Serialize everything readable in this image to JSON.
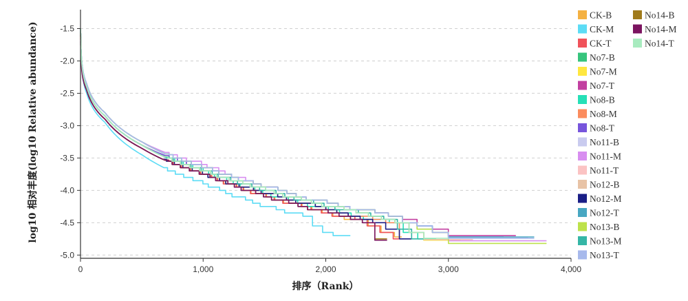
{
  "chart_data": {
    "type": "line",
    "title": "",
    "xlabel": "排序（Rank）",
    "ylabel": "log10 相对丰度(log10 Relative abundance)",
    "xlim": [
      0,
      4000
    ],
    "ylim": [
      -5.05,
      -1.25
    ],
    "xticks": [
      0,
      1000,
      2000,
      3000,
      4000
    ],
    "xtick_labels": [
      "0",
      "1,000",
      "2,000",
      "3,000",
      "4,000"
    ],
    "yticks": [
      -1.5,
      -2.0,
      -2.5,
      -3.0,
      -3.5,
      -4.0,
      -4.5,
      -5.0
    ],
    "ytick_labels": [
      "-1.5",
      "-2.0",
      "-2.5",
      "-3.0",
      "-3.5",
      "-4.0",
      "-4.5",
      "-5.0"
    ],
    "grid": "horizontal dashed",
    "legend_position": "right",
    "series": [
      {
        "name": "CK-B",
        "color": "#f4b142",
        "x": [
          1,
          50,
          200,
          500,
          1000,
          1500,
          2000,
          2300,
          2560,
          2620
        ],
        "y": [
          -1.5,
          -2.45,
          -2.9,
          -3.35,
          -3.75,
          -4.1,
          -4.35,
          -4.5,
          -4.72,
          -4.72
        ]
      },
      {
        "name": "CK-M",
        "color": "#5cdcf5",
        "x": [
          1,
          50,
          200,
          500,
          1000,
          1500,
          1800,
          2000,
          2150,
          2200
        ],
        "y": [
          -1.55,
          -2.5,
          -2.95,
          -3.45,
          -3.9,
          -4.25,
          -4.4,
          -4.7,
          -4.7,
          -4.7
        ]
      },
      {
        "name": "CK-T",
        "color": "#f0525a",
        "x": [
          1,
          50,
          200,
          500,
          1000,
          1500,
          2000,
          2300,
          2550,
          2600
        ],
        "y": [
          -1.6,
          -2.45,
          -2.9,
          -3.35,
          -3.75,
          -4.1,
          -4.35,
          -4.5,
          -4.75,
          -4.75
        ]
      },
      {
        "name": "No7-B",
        "color": "#36c47c",
        "x": [
          1,
          50,
          200,
          500,
          1000,
          1500,
          2000,
          2500,
          2800,
          3050
        ],
        "y": [
          -1.55,
          -2.4,
          -2.85,
          -3.3,
          -3.7,
          -4.0,
          -4.25,
          -4.45,
          -4.77,
          -4.77
        ]
      },
      {
        "name": "No7-M",
        "color": "#ffe740",
        "x": [
          1,
          50,
          200,
          500,
          1000,
          1500,
          2000,
          2500,
          2800,
          3100
        ],
        "y": [
          -1.5,
          -2.4,
          -2.85,
          -3.3,
          -3.7,
          -4.0,
          -4.25,
          -4.45,
          -4.77,
          -4.77
        ]
      },
      {
        "name": "No7-T",
        "color": "#c23fa0",
        "x": [
          1,
          50,
          200,
          500,
          1000,
          1500,
          2000,
          2550,
          3000,
          3550
        ],
        "y": [
          -1.65,
          -2.4,
          -2.85,
          -3.3,
          -3.65,
          -3.95,
          -4.2,
          -4.4,
          -4.7,
          -4.7
        ]
      },
      {
        "name": "No8-B",
        "color": "#26e0b7",
        "x": [
          1,
          50,
          200,
          500,
          1000,
          1500,
          2000,
          2500,
          2750,
          2900
        ],
        "y": [
          -1.5,
          -2.4,
          -2.85,
          -3.3,
          -3.7,
          -4.05,
          -4.3,
          -4.5,
          -4.75,
          -4.75
        ]
      },
      {
        "name": "No8-M",
        "color": "#fb8c5e",
        "x": [
          1,
          50,
          200,
          500,
          1000,
          1500,
          2000,
          2500,
          2600,
          2700
        ],
        "y": [
          -1.6,
          -2.45,
          -2.9,
          -3.35,
          -3.75,
          -4.05,
          -4.3,
          -4.5,
          -4.75,
          -4.75
        ]
      },
      {
        "name": "No8-T",
        "color": "#7755dc",
        "x": [
          1,
          50,
          200,
          500,
          1000,
          1500,
          2000,
          2500,
          3000,
          3450
        ],
        "y": [
          -1.55,
          -2.4,
          -2.85,
          -3.3,
          -3.65,
          -3.95,
          -4.2,
          -4.4,
          -4.72,
          -4.72
        ]
      },
      {
        "name": "No11-B",
        "color": "#c9cbef",
        "x": [
          1,
          50,
          200,
          500,
          1000,
          1500,
          2000,
          2500,
          3000,
          3650
        ],
        "y": [
          -1.5,
          -2.35,
          -2.8,
          -3.25,
          -3.65,
          -3.95,
          -4.2,
          -4.4,
          -4.73,
          -4.73
        ]
      },
      {
        "name": "No11-M",
        "color": "#d88ef0",
        "x": [
          1,
          50,
          200,
          500,
          1000,
          1500,
          2000,
          2500,
          3000,
          3800
        ],
        "y": [
          -1.5,
          -2.35,
          -2.8,
          -3.25,
          -3.6,
          -3.95,
          -4.2,
          -4.4,
          -4.75,
          -4.78
        ]
      },
      {
        "name": "No11-T",
        "color": "#fbc3c3",
        "x": [
          1,
          50,
          200,
          500,
          1000,
          1500,
          2000,
          2500,
          2800,
          3200
        ],
        "y": [
          -1.55,
          -2.4,
          -2.85,
          -3.3,
          -3.7,
          -4.0,
          -4.25,
          -4.45,
          -4.76,
          -4.76
        ]
      },
      {
        "name": "No12-B",
        "color": "#e8c3a6",
        "x": [
          1,
          50,
          200,
          500,
          1000,
          1500,
          2000,
          2500,
          2800,
          3000
        ],
        "y": [
          -1.55,
          -2.4,
          -2.85,
          -3.3,
          -3.7,
          -4.0,
          -4.25,
          -4.45,
          -4.76,
          -4.76
        ]
      },
      {
        "name": "No12-M",
        "color": "#1a1e86",
        "x": [
          1,
          50,
          200,
          500,
          1000,
          1500,
          2000,
          2400,
          2600,
          2700
        ],
        "y": [
          -1.55,
          -2.45,
          -2.9,
          -3.35,
          -3.75,
          -4.05,
          -4.3,
          -4.5,
          -4.75,
          -4.75
        ]
      },
      {
        "name": "No12-T",
        "color": "#48a7c2",
        "x": [
          1,
          50,
          200,
          500,
          1000,
          1500,
          2000,
          2500,
          3000,
          3700
        ],
        "y": [
          -1.5,
          -2.35,
          -2.8,
          -3.25,
          -3.65,
          -3.95,
          -4.2,
          -4.4,
          -4.72,
          -4.72
        ]
      },
      {
        "name": "No13-B",
        "color": "#bde24a",
        "x": [
          1,
          50,
          200,
          500,
          1000,
          1500,
          2000,
          2500,
          3000,
          3800
        ],
        "y": [
          -1.55,
          -2.35,
          -2.8,
          -3.25,
          -3.65,
          -3.95,
          -4.2,
          -4.4,
          -4.75,
          -4.82
        ]
      },
      {
        "name": "No13-M",
        "color": "#35b6a6",
        "x": [
          1,
          50,
          200,
          500,
          1000,
          1500,
          2000,
          2500,
          2700,
          2800
        ],
        "y": [
          -1.5,
          -2.4,
          -2.85,
          -3.3,
          -3.7,
          -4.0,
          -4.25,
          -4.45,
          -4.75,
          -4.75
        ]
      },
      {
        "name": "No13-T",
        "color": "#a7b9ec",
        "x": [
          1,
          50,
          200,
          500,
          1000,
          1500,
          2000,
          2500,
          3000,
          3700
        ],
        "y": [
          -1.5,
          -2.35,
          -2.8,
          -3.25,
          -3.65,
          -3.95,
          -4.2,
          -4.4,
          -4.74,
          -4.74
        ]
      },
      {
        "name": "No14-B",
        "color": "#a07b1c",
        "x": [
          1,
          50,
          200,
          500,
          1000,
          1500,
          2000,
          2300,
          2400,
          2500
        ],
        "y": [
          -1.6,
          -2.45,
          -2.9,
          -3.35,
          -3.75,
          -4.1,
          -4.35,
          -4.5,
          -4.75,
          -4.75
        ]
      },
      {
        "name": "No14-M",
        "color": "#7b1460",
        "x": [
          1,
          50,
          200,
          500,
          1000,
          1500,
          2000,
          2300,
          2400,
          2500
        ],
        "y": [
          -1.7,
          -2.45,
          -2.9,
          -3.35,
          -3.75,
          -4.1,
          -4.35,
          -4.5,
          -4.77,
          -4.77
        ]
      },
      {
        "name": "No14-T",
        "color": "#a8ebbf",
        "x": [
          1,
          50,
          200,
          500,
          1000,
          1500,
          2000,
          2500,
          2800,
          3000
        ],
        "y": [
          -1.5,
          -2.4,
          -2.85,
          -3.3,
          -3.7,
          -4.0,
          -4.25,
          -4.45,
          -4.74,
          -4.74
        ]
      }
    ]
  }
}
